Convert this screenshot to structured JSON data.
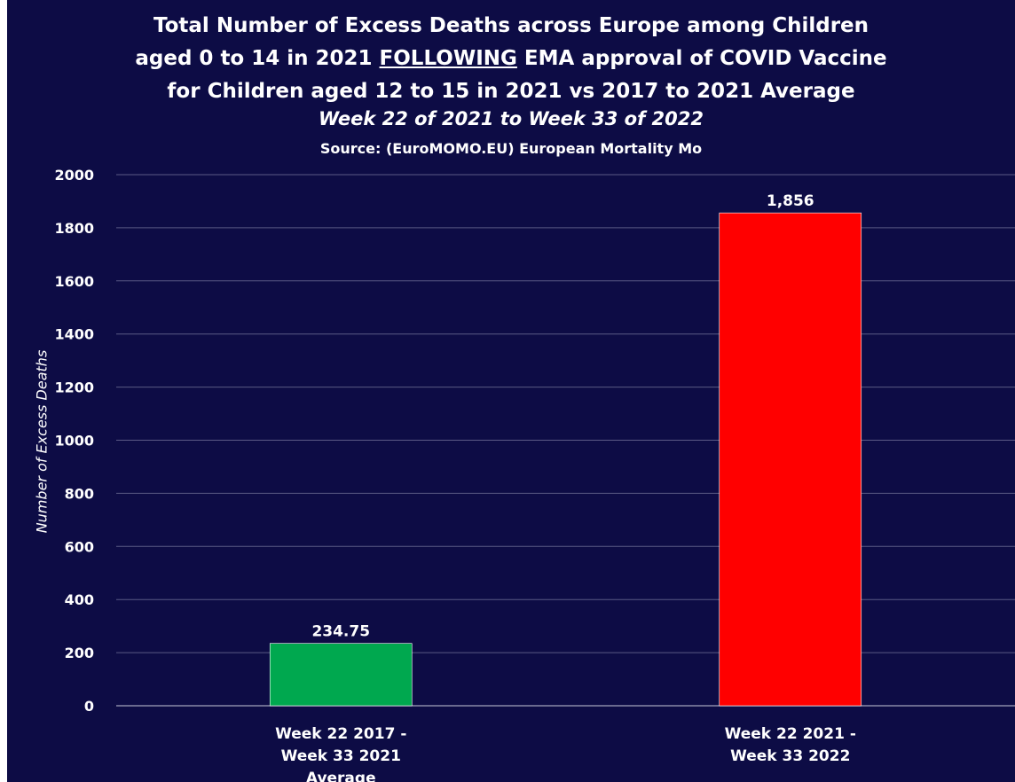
{
  "chart_data": {
    "type": "bar",
    "title_lines": [
      "Total Number of Excess Deaths across Europe among Children",
      "aged 0 to 14 in 2021 ",
      "FOLLOWING",
      " EMA approval of COVID Vaccine",
      "for Children aged 12 to 15 in 2021 vs 2017 to 2021 Average"
    ],
    "subtitle": "Week 22 of 2021 to Week 33 of 2022",
    "source": "Source: (EuroMOMO.EU) European Mortality Mo",
    "ylabel": "Number of Excess Deaths",
    "xlabel": "",
    "ylim": [
      0,
      2000
    ],
    "yticks": [
      "0",
      "200",
      "400",
      "600",
      "800",
      "1000",
      "1200",
      "1400",
      "1600",
      "1800",
      "2000"
    ],
    "grid": true,
    "categories": [
      [
        "Week 22 2017 -",
        "Week 33 2021",
        "Average"
      ],
      [
        "Week 22 2021 -",
        "Week 33 2022"
      ]
    ],
    "values": [
      234.75,
      1856
    ],
    "data_labels": [
      "234.75",
      "1,856"
    ],
    "bar_colors": [
      "#00a84f",
      "#ff0000"
    ],
    "colors": {
      "background": "#0d0c45",
      "text": "#ffffff",
      "gridline": "#5a5a85"
    }
  }
}
